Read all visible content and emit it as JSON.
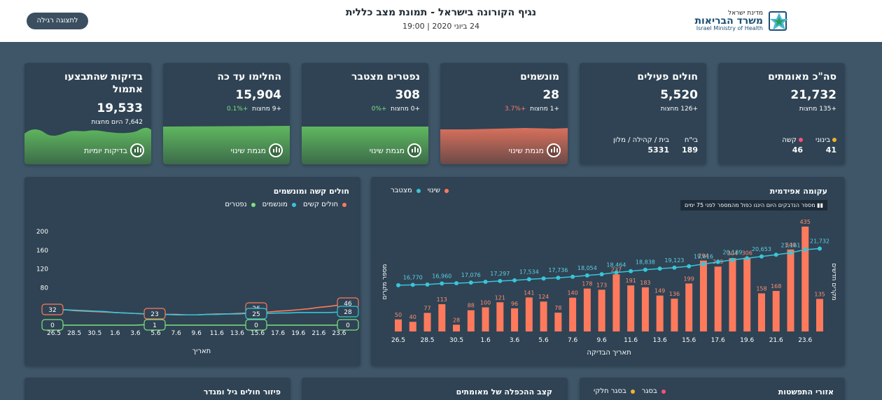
{
  "header": {
    "title": "נגיף הקורונה בישראל - תמונת מצב כללית",
    "subtitle": "24 ביוני 2020 | 19:00",
    "simple_view_button": "לתצוגה רגילה",
    "logo_top": "מדינת ישראל",
    "logo_main": "משרד הבריאות",
    "logo_en": "Israel Ministry of Health"
  },
  "cards": {
    "confirmed": {
      "title": "סה\"כ מאומתים",
      "value": "21,732",
      "delta": "+135 מחצות",
      "stats": [
        {
          "label": "בינוני",
          "value": "41",
          "dot": "#f0b429"
        },
        {
          "label": "קשה",
          "value": "46",
          "dot": "#ff4f7b"
        }
      ]
    },
    "active": {
      "title": "חולים פעילים",
      "value": "5,520",
      "delta": "+126 מחצות",
      "stats": [
        {
          "label": "בי\"ח",
          "value": "189"
        },
        {
          "label": "בית / קהילה / מלון",
          "value": "5331"
        }
      ]
    },
    "ventilated": {
      "title": "מונשמים",
      "value": "28",
      "delta_abs": "+1 מחצות",
      "delta_pct": "+3.7%",
      "trend": "מגמת שינוי"
    },
    "deceased": {
      "title": "נפטרים מצטבר",
      "value": "308",
      "delta_abs": "+0 מחצות",
      "delta_pct": "+0%",
      "trend": "מגמת שינוי"
    },
    "recovered": {
      "title": "החלימו עד כה",
      "value": "15,904",
      "delta_abs": "+9 מחצות",
      "delta_pct": "+0.1%",
      "trend": "מגמת שינוי"
    },
    "tests": {
      "title": "בדיקות שהתבצעו",
      "title2": "אתמול",
      "value": "19,533",
      "delta": "7,642 היום מחצות",
      "trend": "בדיקות יומיות"
    }
  },
  "severe_panel": {
    "title": "חולים קשה ומונשמים",
    "legend": [
      {
        "label": "חולים קשים",
        "color": "#ff7a5c"
      },
      {
        "label": "מונשמים",
        "color": "#39c5d9"
      },
      {
        "label": "נפטרים",
        "color": "#7ee07e"
      }
    ],
    "xlabel": "תאריך",
    "y_ticks": [
      "200",
      "160",
      "120",
      "80"
    ],
    "x_ticks": [
      "26.5",
      "28.5",
      "30.5",
      "1.6",
      "3.6",
      "5.6",
      "7.6",
      "9.6",
      "11.6",
      "13.6",
      "15.6",
      "17.6",
      "19.6",
      "21.6",
      "23.6"
    ],
    "callouts": [
      "32",
      "0",
      "23",
      "1",
      "26",
      "25",
      "0",
      "46",
      "28",
      "0"
    ]
  },
  "epi_panel": {
    "title": "עקומה אפידמית",
    "legend": [
      {
        "label": "שינוי",
        "color": "#ff7a5c"
      },
      {
        "label": "מצטבר",
        "color": "#39c5d9"
      }
    ],
    "note": "מספר הנדבקים היום היננו כפול מהמספר לפני 75 ימים",
    "ylabel_left": "מספר מקרים",
    "ylabel_right": "מקרים חדשים",
    "xlabel": "תאריך הבדיקה",
    "x_ticks": [
      "26.5",
      "28.5",
      "30.5",
      "1.6",
      "3.6",
      "5.6",
      "7.6",
      "9.6",
      "11.6",
      "13.6",
      "15.6",
      "17.6",
      "19.6",
      "21.6",
      "23.6"
    ],
    "cumulative_labels": [
      "16,770",
      "16,960",
      "17,076",
      "17,297",
      "17,534",
      "17,736",
      "18,054",
      "18,464",
      "18,838",
      "19,123",
      "19,616",
      "20,189",
      "20,653",
      "21,161",
      "21,732"
    ]
  },
  "bottom": {
    "areas": {
      "title": "אזורי התפשטות",
      "legend": [
        {
          "label": "בסגר",
          "color": "#ff4f7b"
        },
        {
          "label": "בסגר חלקי",
          "color": "#f0b429"
        }
      ]
    },
    "doubling": {
      "title": "קצב ההכפלה של מאומתים"
    },
    "agegender": {
      "title": "פיזור חולים גיל ומגדר"
    }
  },
  "chart_data": [
    {
      "type": "bar",
      "title": "עקומה אפידמית",
      "xlabel": "תאריך הבדיקה",
      "ylabel": "מקרים חדשים",
      "categories": [
        "26.5",
        "27.5",
        "28.5",
        "29.5",
        "30.5",
        "31.5",
        "1.6",
        "2.6",
        "3.6",
        "4.6",
        "5.6",
        "6.6",
        "7.6",
        "8.6",
        "9.6",
        "10.6",
        "11.6",
        "12.6",
        "13.6",
        "14.6",
        "15.6",
        "16.6",
        "17.6",
        "18.6",
        "19.6",
        "20.6",
        "21.6",
        "22.6",
        "23.6",
        "24.6"
      ],
      "series": [
        {
          "name": "שינוי",
          "values": [
            50,
            40,
            77,
            113,
            28,
            88,
            100,
            121,
            96,
            141,
            124,
            78,
            140,
            178,
            173,
            237,
            191,
            183,
            149,
            136,
            199,
            294,
            269,
            304,
            306,
            158,
            168,
            340,
            435,
            135
          ]
        }
      ]
    },
    {
      "type": "line",
      "title": "עקומה אפידמית",
      "categories": [
        "26.5",
        "27.5",
        "28.5",
        "29.5",
        "30.5",
        "31.5",
        "1.6",
        "2.6",
        "3.6",
        "4.6",
        "5.6",
        "6.6",
        "7.6",
        "8.6",
        "9.6",
        "10.6",
        "11.6",
        "12.6",
        "13.6",
        "14.6",
        "15.6",
        "16.6",
        "17.6",
        "18.6",
        "19.6",
        "20.6",
        "21.6",
        "22.6",
        "23.6",
        "24.6"
      ],
      "series": [
        {
          "name": "מצטבר",
          "values": [
            16720,
            16770,
            16810,
            16960,
            16990,
            17076,
            17180,
            17297,
            17390,
            17534,
            17640,
            17736,
            17880,
            18054,
            18230,
            18464,
            18650,
            18838,
            18990,
            19123,
            19320,
            19616,
            19900,
            20189,
            20420,
            20653,
            20900,
            21161,
            21597,
            21732
          ]
        }
      ]
    },
    {
      "type": "line",
      "title": "חולים קשה ומונשמים",
      "xlabel": "תאריך",
      "ylim": [
        0,
        200
      ],
      "categories": [
        "26.5",
        "27.5",
        "28.5",
        "29.5",
        "30.5",
        "31.5",
        "1.6",
        "2.6",
        "3.6",
        "4.6",
        "5.6",
        "6.6",
        "7.6",
        "8.6",
        "9.6",
        "10.6",
        "11.6",
        "12.6",
        "13.6",
        "14.6",
        "15.6",
        "16.6",
        "17.6",
        "18.6",
        "19.6",
        "20.6",
        "21.6",
        "22.6",
        "23.6",
        "24.6"
      ],
      "series": [
        {
          "name": "חולים קשים",
          "values": [
            32,
            33,
            31,
            30,
            29,
            28,
            27,
            26,
            25,
            24,
            24,
            23,
            23,
            22,
            22,
            23,
            24,
            24,
            25,
            26,
            26,
            28,
            30,
            31,
            33,
            35,
            38,
            40,
            43,
            46
          ]
        },
        {
          "name": "מונשמים",
          "values": [
            32,
            33,
            32,
            31,
            30,
            29,
            27,
            26,
            25,
            24,
            23,
            23,
            22,
            22,
            22,
            23,
            23,
            24,
            24,
            25,
            25,
            25,
            26,
            26,
            27,
            27,
            27,
            27,
            28,
            28
          ]
        },
        {
          "name": "נפטרים",
          "values": [
            0,
            0,
            0,
            0,
            0,
            0,
            0,
            0,
            0,
            1,
            1,
            0,
            0,
            0,
            0,
            0,
            0,
            0,
            0,
            0,
            0,
            0,
            0,
            0,
            0,
            0,
            0,
            0,
            0,
            0
          ]
        }
      ]
    }
  ]
}
